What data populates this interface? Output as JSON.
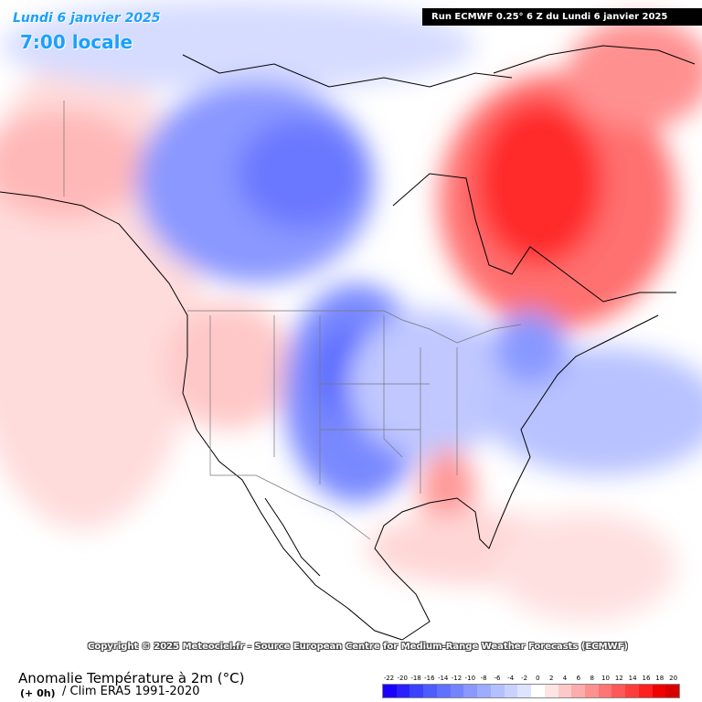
{
  "header": {
    "date": "Lundi 6 janvier 2025",
    "time": "7:00 locale",
    "run": "Run ECMWF 0.25° 6 Z du Lundi 6 janvier 2025"
  },
  "copyright": "Copyright © 2025 Meteociel.fr - Source European Centre for Medium-Range Weather Forecasts (ECMWF)",
  "footer": {
    "variable": "Anomalie Température à 2m (°C)",
    "lead": "(+ 0h)",
    "climatology": "/ Clim ERA5 1991-2020"
  },
  "legend": {
    "ticks": [
      "-22",
      "-20",
      "-18",
      "-16",
      "-14",
      "-12",
      "-10",
      "-8",
      "-6",
      "-4",
      "-2",
      "0",
      "2",
      "4",
      "6",
      "8",
      "10",
      "12",
      "14",
      "16",
      "18",
      "20"
    ],
    "colors": [
      "#1a00ff",
      "#2a20ff",
      "#3c40ff",
      "#4d5cff",
      "#6070ff",
      "#7484ff",
      "#8898ff",
      "#9dacff",
      "#b2c0ff",
      "#c8d2ff",
      "#dde4ff",
      "#ffffff",
      "#ffe4e4",
      "#ffc8c8",
      "#ffacac",
      "#ff9090",
      "#ff7474",
      "#ff5858",
      "#ff3c3c",
      "#ff2020",
      "#f00000",
      "#d80000"
    ]
  },
  "colors": {
    "warm_strong": "#ff2020",
    "warm_light": "#ffd0d0",
    "cold_strong": "#5060ff",
    "cold_light": "#c8d0ff",
    "title": "#1aa0ff"
  }
}
